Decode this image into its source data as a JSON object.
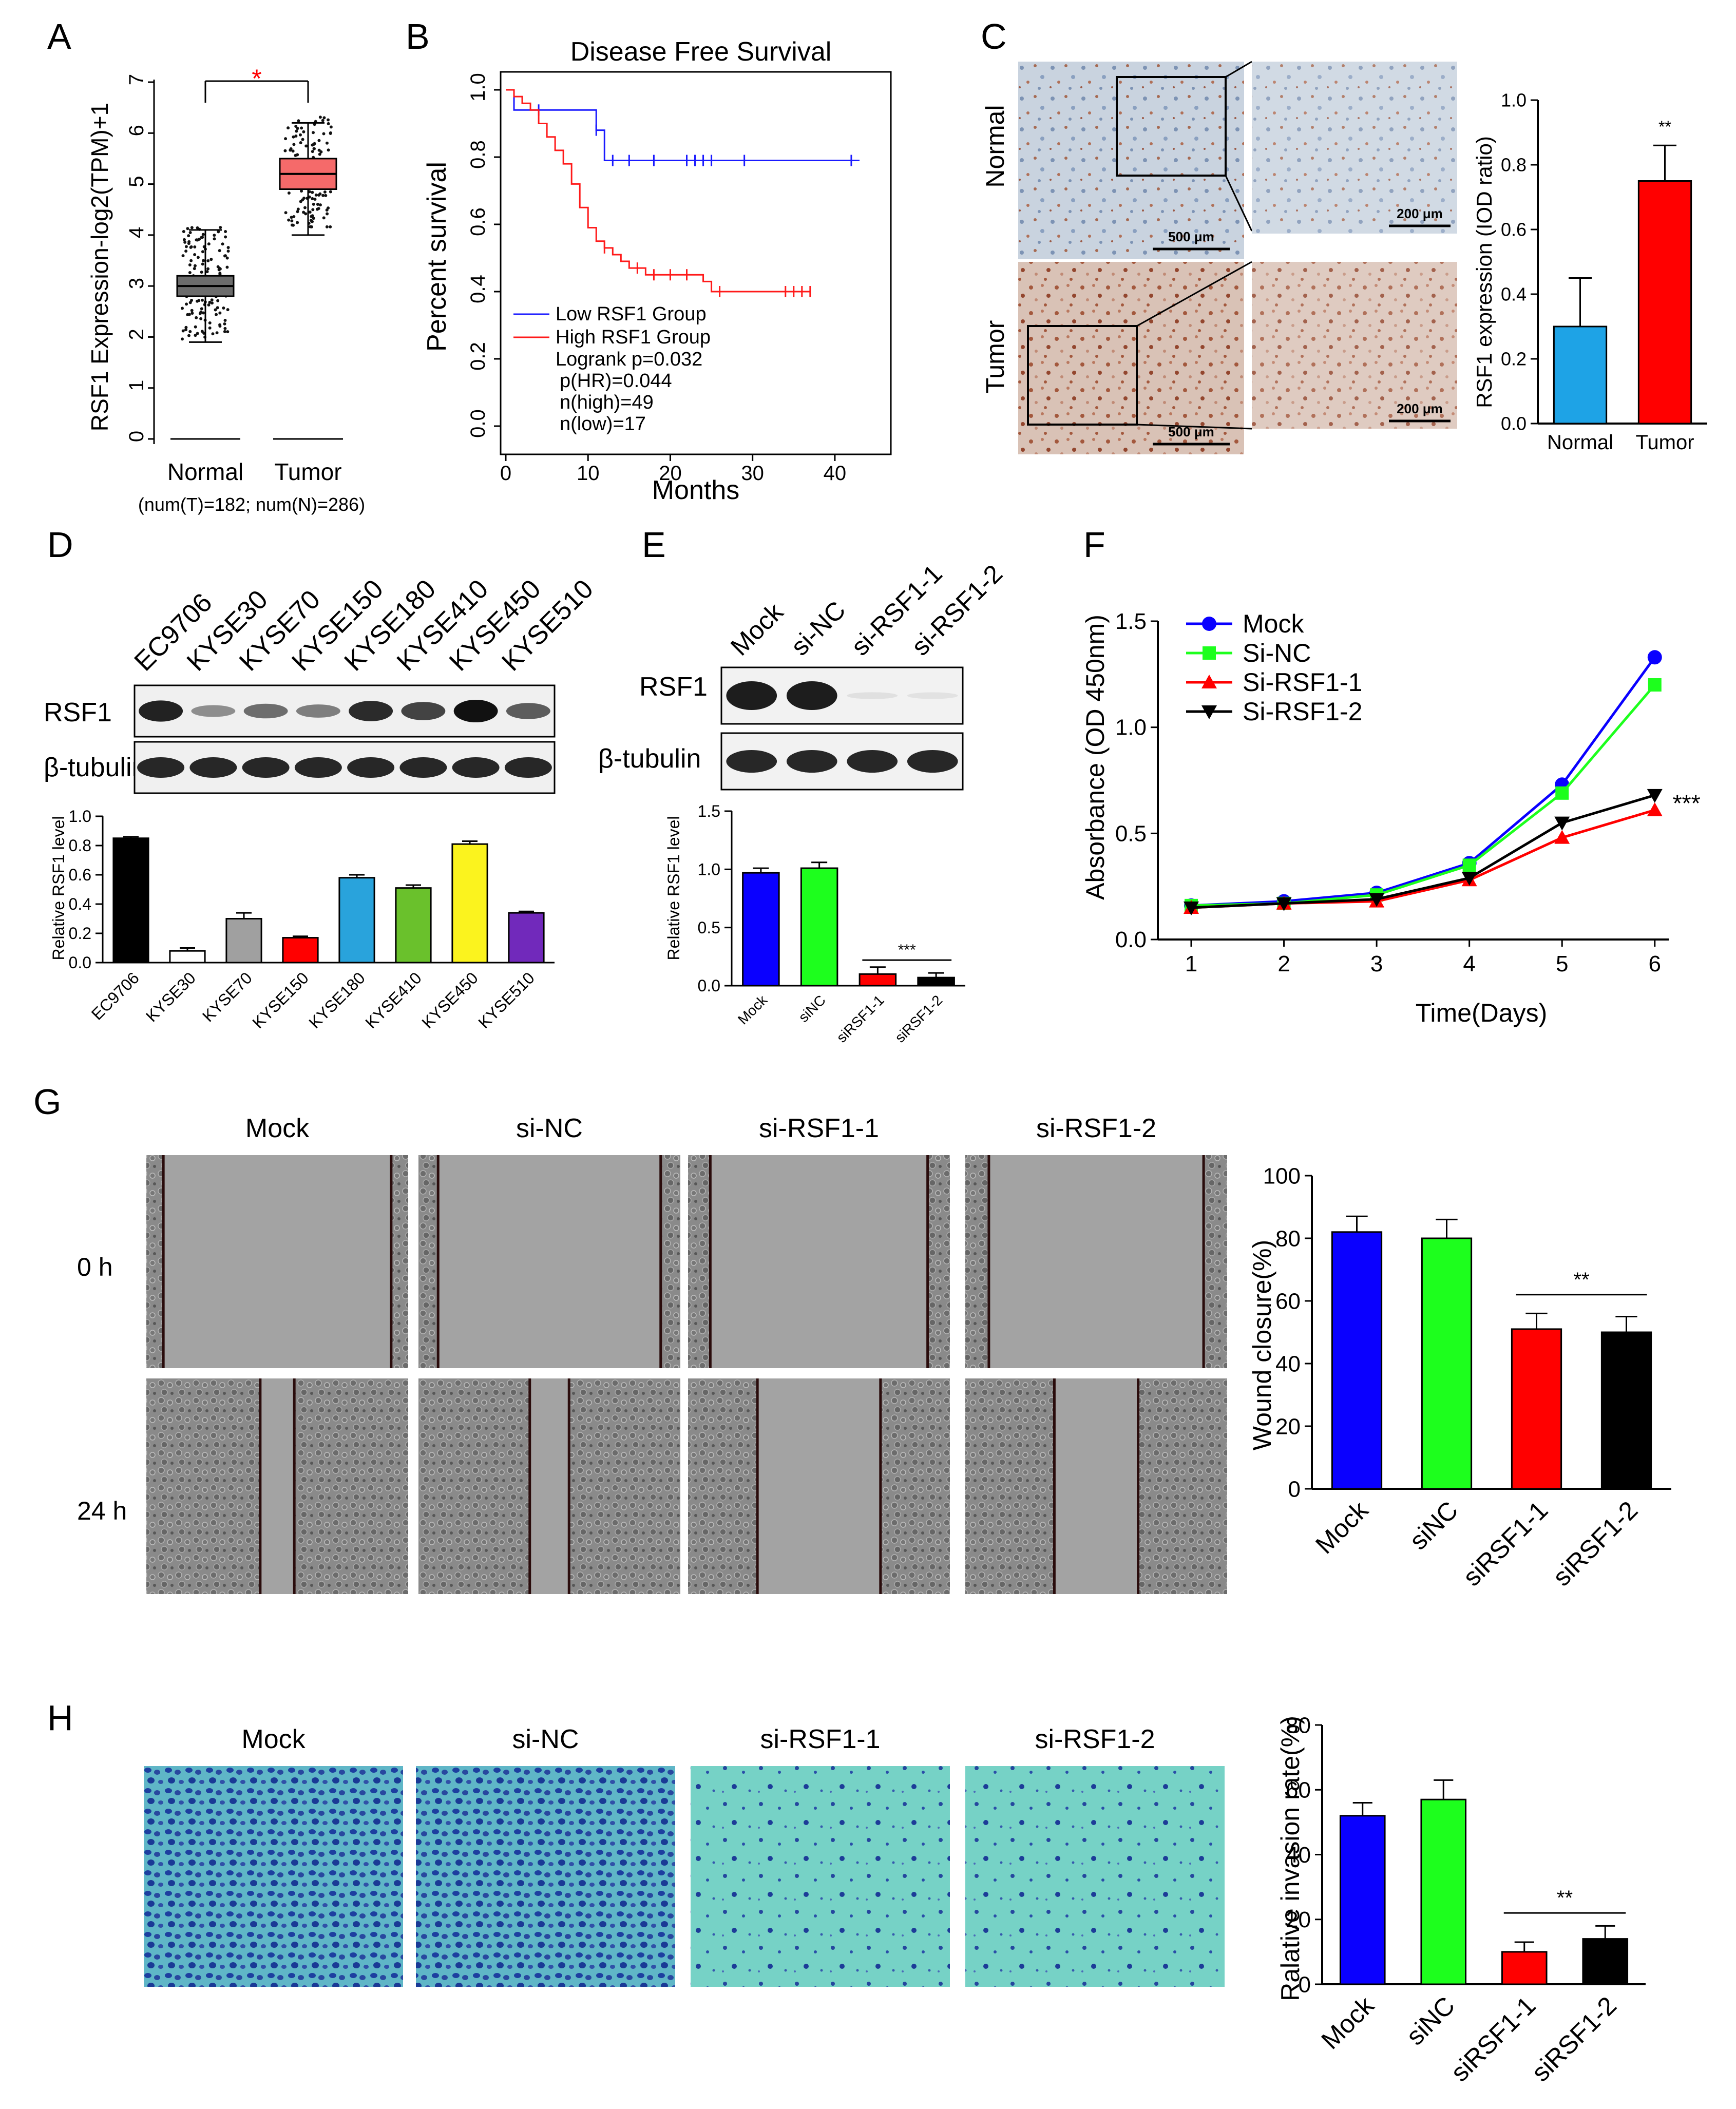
{
  "panel_letters": [
    "A",
    "B",
    "C",
    "D",
    "E",
    "F",
    "G",
    "H"
  ],
  "colors": {
    "blue": "#0a00ff",
    "green": "#1dff1d",
    "red": "#ff0000",
    "black": "#000000",
    "normal_box": "#6c6c6c",
    "tumor_box": "#f56a6a",
    "km_low": "#1a1aff",
    "km_high": "#ff1a1a",
    "ihc_blue": "#1ea3e6",
    "gray": "#a0a0a0",
    "cyan": "#29a3dc",
    "lime": "#6ac12c",
    "yellow": "#fbf31e",
    "purple": "#7129bb",
    "invasion_bg": "#6fcfc3"
  },
  "chart_data": [
    {
      "id": "A",
      "type": "box",
      "ylabel": "RSF1 Expression-log2(TPM)+1",
      "yticks": [
        "0",
        "1",
        "2",
        "3",
        "4",
        "5",
        "6",
        "7"
      ],
      "ylim": [
        0,
        7
      ],
      "categories": [
        "Normal",
        "Tumor"
      ],
      "footnote": "(num(T)=182; num(N)=286)",
      "significance": "*",
      "boxes": [
        {
          "name": "Normal",
          "min": 1.9,
          "q1": 2.8,
          "median": 3.0,
          "q3": 3.2,
          "max": 4.1
        },
        {
          "name": "Tumor",
          "min": 4.0,
          "q1": 4.9,
          "median": 5.2,
          "q3": 5.5,
          "max": 6.2
        }
      ]
    },
    {
      "id": "B",
      "type": "line",
      "title": "Disease Free Survival",
      "xlabel": "Months",
      "ylabel": "Percent survival",
      "xticks": [
        "0",
        "10",
        "20",
        "30",
        "40"
      ],
      "yticks": [
        "0.0",
        "0.2",
        "0.4",
        "0.6",
        "0.8",
        "1.0"
      ],
      "xlim": [
        0,
        44
      ],
      "ylim": [
        0,
        1
      ],
      "legend": [
        "Low RSF1 Group",
        "High RSF1 Group"
      ],
      "stats": [
        "Logrank p=0.032",
        "p(HR)=0.044",
        "n(high)=49",
        "n(low)=17"
      ],
      "series": [
        {
          "name": "Low RSF1 Group",
          "steps": [
            [
              0,
              1.0
            ],
            [
              1,
              0.94
            ],
            [
              11,
              0.88
            ],
            [
              12,
              0.79
            ],
            [
              43,
              0.79
            ]
          ],
          "censor": [
            [
              4,
              0.94
            ],
            [
              11,
              0.88
            ],
            [
              13,
              0.79
            ],
            [
              15,
              0.79
            ],
            [
              18,
              0.79
            ],
            [
              22,
              0.79
            ],
            [
              23,
              0.79
            ],
            [
              24,
              0.79
            ],
            [
              25,
              0.79
            ],
            [
              29,
              0.79
            ],
            [
              42,
              0.79
            ]
          ]
        },
        {
          "name": "High RSF1 Group",
          "steps": [
            [
              0,
              1.0
            ],
            [
              1,
              0.98
            ],
            [
              2,
              0.96
            ],
            [
              3,
              0.94
            ],
            [
              4,
              0.9
            ],
            [
              5,
              0.86
            ],
            [
              6,
              0.82
            ],
            [
              7,
              0.78
            ],
            [
              8,
              0.72
            ],
            [
              9,
              0.65
            ],
            [
              10,
              0.59
            ],
            [
              11,
              0.55
            ],
            [
              12,
              0.53
            ],
            [
              13,
              0.51
            ],
            [
              14,
              0.49
            ],
            [
              15,
              0.47
            ],
            [
              17,
              0.45
            ],
            [
              24,
              0.43
            ],
            [
              25,
              0.4
            ],
            [
              37,
              0.4
            ]
          ],
          "censor": [
            [
              12,
              0.53
            ],
            [
              16,
              0.47
            ],
            [
              18,
              0.45
            ],
            [
              20,
              0.45
            ],
            [
              22,
              0.45
            ],
            [
              26,
              0.4
            ],
            [
              34,
              0.4
            ],
            [
              35,
              0.4
            ],
            [
              36,
              0.4
            ],
            [
              37,
              0.4
            ]
          ]
        }
      ]
    },
    {
      "id": "C",
      "type": "bar",
      "ylabel": "RSF1 expression (IOD ratio)",
      "yticks": [
        "0.0",
        "0.2",
        "0.4",
        "0.6",
        "0.8",
        "1.0"
      ],
      "ylim": [
        0,
        1
      ],
      "categories": [
        "Normal",
        "Tumor"
      ],
      "values": [
        0.3,
        0.75
      ],
      "errors": [
        0.15,
        0.11
      ],
      "significance": "**"
    },
    {
      "id": "D",
      "type": "bar",
      "ylabel": "Relative RSF1 level",
      "yticks": [
        "0.0",
        "0.2",
        "0.4",
        "0.6",
        "0.8",
        "1.0"
      ],
      "ylim": [
        0,
        1
      ],
      "categories": [
        "EC9706",
        "KYSE30",
        "KYSE70",
        "KYSE150",
        "KYSE180",
        "KYSE410",
        "KYSE450",
        "KYSE510"
      ],
      "values": [
        0.85,
        0.08,
        0.3,
        0.17,
        0.58,
        0.51,
        0.81,
        0.34
      ],
      "errors": [
        0.01,
        0.02,
        0.04,
        0.01,
        0.02,
        0.02,
        0.02,
        0.01
      ]
    },
    {
      "id": "E",
      "type": "bar",
      "ylabel": "Relative RSF1  level",
      "yticks": [
        "0.0",
        "0.5",
        "1.0",
        "1.5"
      ],
      "ylim": [
        0,
        1.5
      ],
      "categories": [
        "Mock",
        "siNC",
        "siRSF1-1",
        "siRSF1-2"
      ],
      "values": [
        0.97,
        1.01,
        0.1,
        0.07
      ],
      "errors": [
        0.04,
        0.05,
        0.06,
        0.04
      ],
      "significance": "***"
    },
    {
      "id": "F",
      "type": "line",
      "xlabel": "Time(Days)",
      "ylabel": "Absorbance (OD 450nm)",
      "x": [
        1,
        2,
        3,
        4,
        5,
        6
      ],
      "xticks": [
        "1",
        "2",
        "3",
        "4",
        "5",
        "6"
      ],
      "yticks": [
        "0.0",
        "0.5",
        "1.0",
        "1.5"
      ],
      "ylim": [
        0,
        1.5
      ],
      "legend_location": "top-left",
      "significance": "***",
      "series": [
        {
          "name": "Mock",
          "values": [
            0.16,
            0.18,
            0.22,
            0.36,
            0.73,
            1.33
          ]
        },
        {
          "name": "Si-NC",
          "values": [
            0.16,
            0.17,
            0.21,
            0.35,
            0.69,
            1.2
          ]
        },
        {
          "name": "Si-RSF1-1",
          "values": [
            0.15,
            0.17,
            0.18,
            0.28,
            0.48,
            0.61
          ]
        },
        {
          "name": "Si-RSF1-2",
          "values": [
            0.15,
            0.17,
            0.19,
            0.29,
            0.55,
            0.68
          ]
        }
      ]
    },
    {
      "id": "G",
      "type": "bar",
      "ylabel": "Wound closure(%)",
      "yticks": [
        "0",
        "20",
        "40",
        "60",
        "80",
        "100"
      ],
      "ylim": [
        0,
        100
      ],
      "categories": [
        "Mock",
        "siNC",
        "siRSF1-1",
        "siRSF1-2"
      ],
      "values": [
        82,
        80,
        51,
        50
      ],
      "errors": [
        5,
        6,
        5,
        5
      ],
      "significance": "**"
    },
    {
      "id": "H",
      "type": "bar",
      "ylabel": "Ralative invasion rate(%)",
      "yticks": [
        "0",
        "20",
        "40",
        "60",
        "80"
      ],
      "ylim": [
        0,
        80
      ],
      "categories": [
        "Mock",
        "siNC",
        "siRSF1-1",
        "siRSF1-2"
      ],
      "values": [
        52,
        57,
        10,
        14
      ],
      "errors": [
        4,
        6,
        3,
        4
      ],
      "significance": "**"
    }
  ],
  "ihc": {
    "rows": [
      "Normal",
      "Tumor"
    ],
    "scalebar_large": "500 μm",
    "scalebar_small": "200 μm"
  },
  "western": {
    "rows": [
      "RSF1",
      "β-tubulin"
    ],
    "d_lanes": [
      "EC9706",
      "KYSE30",
      "KYSE70",
      "KYSE150",
      "KYSE180",
      "KYSE410",
      "KYSE450",
      "KYSE510"
    ],
    "d_rsf1_intensity": [
      0.9,
      0.25,
      0.45,
      0.35,
      0.85,
      0.7,
      1.0,
      0.55
    ],
    "e_lanes": [
      "Mock",
      "si-NC",
      "si-RSF1-1",
      "si-RSF1-2"
    ],
    "e_rsf1_intensity": [
      1.0,
      1.0,
      0.03,
      0.02
    ]
  },
  "wound": {
    "columns": [
      "Mock",
      "si-NC",
      "si-RSF1-1",
      "si-RSF1-2"
    ],
    "rows": [
      "0 h",
      "24 h"
    ],
    "gap_0h": [
      0.87,
      0.85,
      0.83,
      0.82
    ],
    "gap_24h": [
      0.13,
      0.15,
      0.47,
      0.32
    ]
  },
  "invasion": {
    "columns": [
      "Mock",
      "si-NC",
      "si-RSF1-1",
      "si-RSF1-2"
    ],
    "density": [
      1.0,
      1.0,
      0.35,
      0.4
    ]
  }
}
